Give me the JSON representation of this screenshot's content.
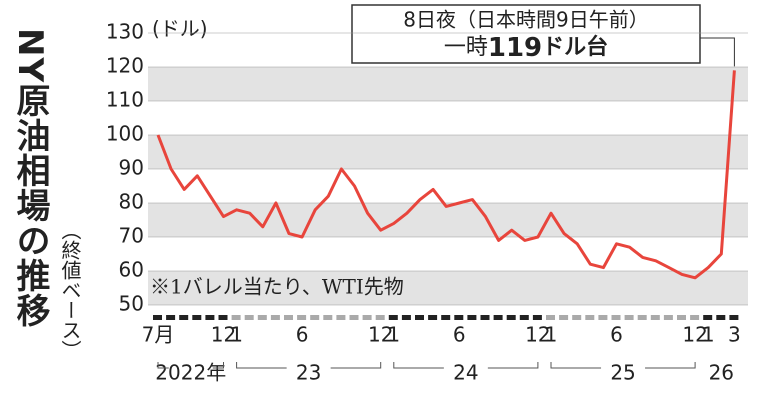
{
  "chart_data": {
    "type": "line",
    "title": "NY原油相場の推移",
    "subtitle": "（終値ベース）",
    "y_unit": "(ドル)",
    "annotation": [
      "8日夜（日本時間9日午前）",
      "一時",
      "119",
      "ドル台"
    ],
    "note": "※1バレル当たり、WTI先物",
    "color": "#e8453c",
    "x": [
      "2022-07",
      "2022-08",
      "2022-09",
      "2022-10",
      "2022-11",
      "2022-12",
      "2023-01",
      "2023-02",
      "2023-03",
      "2023-04",
      "2023-05",
      "2023-06",
      "2023-07",
      "2023-08",
      "2023-09",
      "2023-10",
      "2023-11",
      "2023-12",
      "2024-01",
      "2024-02",
      "2024-03",
      "2024-04",
      "2024-05",
      "2024-06",
      "2024-07",
      "2024-08",
      "2024-09",
      "2024-10",
      "2024-11",
      "2024-12",
      "2025-01",
      "2025-02",
      "2025-03",
      "2025-04",
      "2025-05",
      "2025-06",
      "2025-07",
      "2025-08",
      "2025-09",
      "2025-10",
      "2025-11",
      "2025-12",
      "2026-01",
      "2026-02",
      "2026-03"
    ],
    "values": [
      100,
      90,
      84,
      88,
      82,
      76,
      78,
      77,
      73,
      80,
      71,
      70,
      78,
      82,
      90,
      85,
      77,
      72,
      74,
      77,
      81,
      84,
      79,
      80,
      81,
      76,
      69,
      72,
      69,
      70,
      77,
      71,
      68,
      62,
      61,
      68,
      67,
      64,
      63,
      61,
      59,
      58,
      61,
      65,
      119
    ],
    "ylim": [
      50,
      130
    ],
    "yticks": [
      50,
      60,
      70,
      80,
      90,
      100,
      110,
      120,
      130
    ],
    "xticks": [
      {
        "value": "2022-07",
        "label": "7月"
      },
      {
        "value": "2022-12",
        "label": "12"
      },
      {
        "value": "2023-01",
        "label": "1"
      },
      {
        "value": "2023-06",
        "label": "6"
      },
      {
        "value": "2023-12",
        "label": "12"
      },
      {
        "value": "2024-01",
        "label": "1"
      },
      {
        "value": "2024-06",
        "label": "6"
      },
      {
        "value": "2024-12",
        "label": "12"
      },
      {
        "value": "2025-01",
        "label": "1"
      },
      {
        "value": "2025-06",
        "label": "6"
      },
      {
        "value": "2025-12",
        "label": "12"
      },
      {
        "value": "2026-01",
        "label": "1"
      },
      {
        "value": "2026-03",
        "label": "3"
      }
    ],
    "year_labels": [
      {
        "value": "2022",
        "label": "2022年"
      },
      {
        "value": "2023",
        "label": "23"
      },
      {
        "value": "2024",
        "label": "24"
      },
      {
        "value": "2025",
        "label": "25"
      },
      {
        "value": "2026",
        "label": "26"
      }
    ]
  }
}
